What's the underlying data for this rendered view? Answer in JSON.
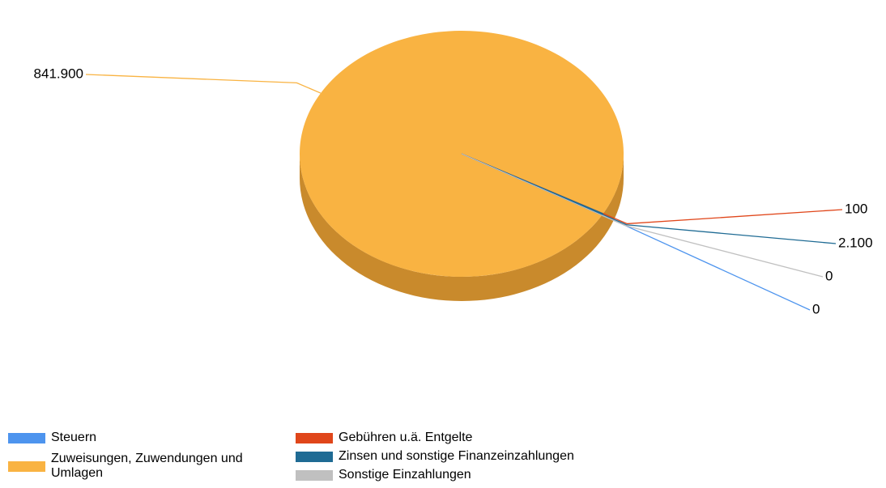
{
  "chart_data": {
    "type": "pie",
    "categories": [
      "Steuern",
      "Zuweisungen, Zuwendungen und Umlagen",
      "Gebühren u.ä. Entgelte",
      "Zinsen und sonstige Finanzeinzahlungen",
      "Sonstige Einzahlungen"
    ],
    "values": [
      0,
      841900,
      100,
      2100,
      0
    ],
    "value_labels": [
      "0",
      "841.900",
      "100",
      "2.100",
      "0"
    ],
    "colors": [
      "#4d94ee",
      "#f9b342",
      "#e0461a",
      "#1f6b94",
      "#c0c0c0"
    ],
    "legend": "bottom"
  }
}
